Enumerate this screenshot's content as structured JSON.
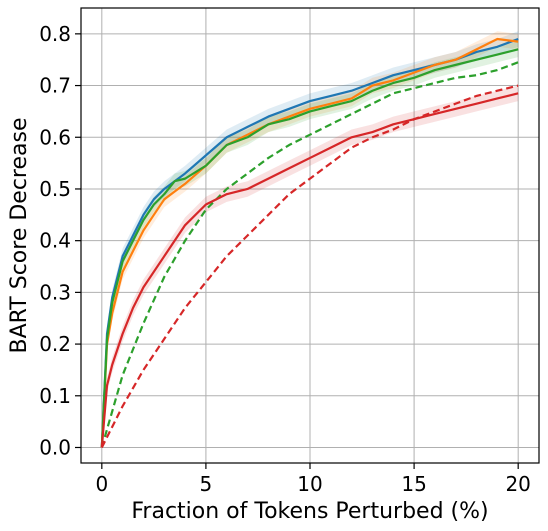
{
  "chart_data": {
    "type": "line",
    "title": "",
    "xlabel": "Fraction of Tokens Perturbed (%)",
    "ylabel": "BART Score Decrease",
    "xlim": [
      -1,
      21
    ],
    "ylim": [
      -0.03,
      0.85
    ],
    "xticks": [
      0,
      5,
      10,
      15,
      20
    ],
    "xtick_labels": [
      "0",
      "5",
      "10",
      "15",
      "20"
    ],
    "yticks": [
      0.0,
      0.1,
      0.2,
      0.3,
      0.4,
      0.5,
      0.6,
      0.7,
      0.8
    ],
    "ytick_labels": [
      "0.0",
      "0.1",
      "0.2",
      "0.3",
      "0.4",
      "0.5",
      "0.6",
      "0.7",
      "0.8"
    ],
    "grid": true,
    "legend": "none",
    "series": [
      {
        "color": "#1f77b4",
        "dash": "solid",
        "band": 0.015,
        "x": [
          0,
          0.25,
          0.5,
          1,
          1.5,
          2,
          2.5,
          3,
          3.5,
          4,
          5,
          6,
          7,
          8,
          9,
          10,
          11,
          12,
          13,
          14,
          15,
          16,
          17,
          18,
          19,
          20
        ],
        "y": [
          0,
          0.22,
          0.29,
          0.37,
          0.41,
          0.45,
          0.48,
          0.5,
          0.515,
          0.53,
          0.565,
          0.6,
          0.62,
          0.64,
          0.655,
          0.67,
          0.68,
          0.69,
          0.705,
          0.72,
          0.73,
          0.74,
          0.75,
          0.765,
          0.775,
          0.79
        ]
      },
      {
        "color": "#ff7f0e",
        "dash": "solid",
        "band": 0.015,
        "x": [
          0,
          0.25,
          0.5,
          1,
          1.5,
          2,
          2.5,
          3,
          3.5,
          4,
          5,
          6,
          7,
          8,
          9,
          10,
          11,
          12,
          13,
          14,
          15,
          16,
          17,
          18,
          19,
          20
        ],
        "y": [
          0,
          0.2,
          0.26,
          0.34,
          0.38,
          0.42,
          0.45,
          0.48,
          0.495,
          0.51,
          0.545,
          0.585,
          0.605,
          0.625,
          0.64,
          0.655,
          0.665,
          0.675,
          0.7,
          0.71,
          0.725,
          0.74,
          0.75,
          0.77,
          0.79,
          0.785
        ]
      },
      {
        "color": "#2ca02c",
        "dash": "solid",
        "band": 0.015,
        "x": [
          0,
          0.25,
          0.5,
          1,
          1.5,
          2,
          2.5,
          3,
          3.5,
          4,
          5,
          6,
          7,
          8,
          9,
          10,
          11,
          12,
          13,
          14,
          15,
          16,
          17,
          18,
          19,
          20
        ],
        "y": [
          0,
          0.21,
          0.28,
          0.36,
          0.4,
          0.44,
          0.47,
          0.49,
          0.515,
          0.52,
          0.545,
          0.585,
          0.6,
          0.625,
          0.635,
          0.65,
          0.66,
          0.67,
          0.69,
          0.705,
          0.715,
          0.73,
          0.74,
          0.75,
          0.76,
          0.77
        ]
      },
      {
        "color": "#2ca02c",
        "dash": "dashed",
        "band": 0.0,
        "x": [
          0,
          1,
          2,
          3,
          4,
          5,
          6,
          7,
          8,
          9,
          10,
          11,
          12,
          13,
          14,
          15,
          16,
          17,
          18,
          19,
          20
        ],
        "y": [
          0,
          0.14,
          0.24,
          0.33,
          0.4,
          0.46,
          0.5,
          0.53,
          0.56,
          0.585,
          0.605,
          0.625,
          0.645,
          0.665,
          0.685,
          0.695,
          0.705,
          0.715,
          0.72,
          0.73,
          0.745
        ]
      },
      {
        "color": "#d62728",
        "dash": "solid",
        "band": 0.015,
        "x": [
          0,
          0.25,
          0.5,
          1,
          1.5,
          2,
          3,
          4,
          5,
          6,
          7,
          8,
          9,
          10,
          11,
          12,
          13,
          14,
          15,
          16,
          17,
          18,
          19,
          20
        ],
        "y": [
          0,
          0.12,
          0.16,
          0.22,
          0.27,
          0.31,
          0.37,
          0.43,
          0.47,
          0.49,
          0.5,
          0.52,
          0.54,
          0.56,
          0.58,
          0.6,
          0.61,
          0.625,
          0.635,
          0.645,
          0.655,
          0.665,
          0.675,
          0.685
        ]
      },
      {
        "color": "#d62728",
        "dash": "dashed",
        "band": 0.0,
        "x": [
          0,
          1,
          2,
          3,
          4,
          5,
          6,
          7,
          8,
          9,
          10,
          11,
          12,
          13,
          14,
          15,
          16,
          17,
          18,
          19,
          20
        ],
        "y": [
          0,
          0.08,
          0.15,
          0.21,
          0.27,
          0.32,
          0.37,
          0.41,
          0.45,
          0.49,
          0.52,
          0.55,
          0.58,
          0.6,
          0.615,
          0.635,
          0.65,
          0.665,
          0.68,
          0.69,
          0.7
        ]
      }
    ]
  }
}
